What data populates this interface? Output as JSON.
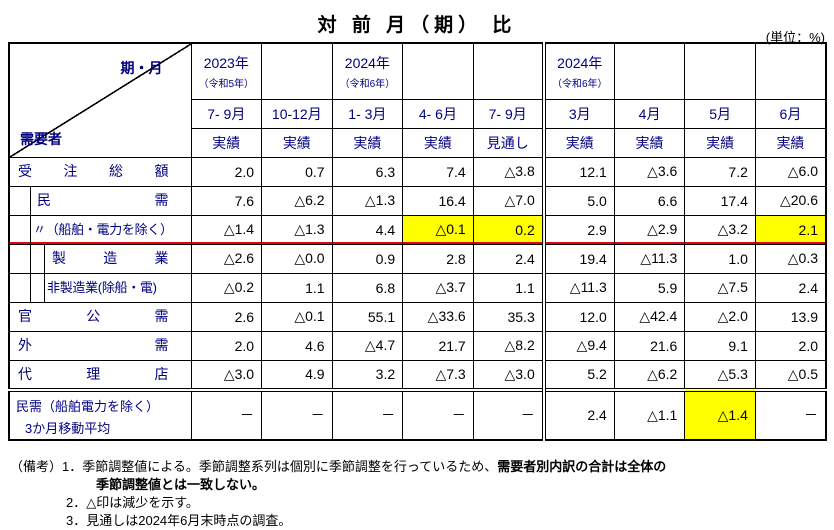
{
  "title": "対 前 月（期） 比",
  "unit_label": "(単位：%)",
  "table": {
    "corner_top": "期・月",
    "corner_bottom": "需要者",
    "monthly_section_start": 5,
    "columns": [
      {
        "year": "2023年",
        "era": "（令和5年）",
        "month": "7- 9月",
        "type": "実績"
      },
      {
        "year": "",
        "era": "",
        "month": "10-12月",
        "type": "実績"
      },
      {
        "year": "2024年",
        "era": "（令和6年）",
        "month": "1- 3月",
        "type": "実績"
      },
      {
        "year": "",
        "era": "",
        "month": "4- 6月",
        "type": "実績"
      },
      {
        "year": "",
        "era": "",
        "month": "7- 9月",
        "type": "見通し"
      },
      {
        "year": "2024年",
        "era": "（令和6年）",
        "month": "3月",
        "type": "実績"
      },
      {
        "year": "",
        "era": "",
        "month": "4月",
        "type": "実績"
      },
      {
        "year": "",
        "era": "",
        "month": "5月",
        "type": "実績"
      },
      {
        "year": "",
        "era": "",
        "month": "6月",
        "type": "実績"
      }
    ],
    "rows": [
      {
        "label": "受 注 総 額",
        "indent": 0,
        "justify": true,
        "values": [
          "2.0",
          "0.7",
          "6.3",
          "7.4",
          "△3.8",
          "12.1",
          "△3.6",
          "7.2",
          "△6.0"
        ]
      },
      {
        "label": "民 需",
        "indent": 1,
        "justify": true,
        "vlines": [
          20
        ],
        "values": [
          "7.6",
          "△6.2",
          "△1.3",
          "16.4",
          "△7.0",
          "5.0",
          "6.6",
          "17.4",
          "△20.6"
        ]
      },
      {
        "label": "〃（船舶・電力を除く）",
        "indent": 1,
        "justify": false,
        "small": true,
        "vlines": [
          20
        ],
        "red_bottom": true,
        "highlights": [
          3,
          4,
          8
        ],
        "values": [
          "△1.4",
          "△1.3",
          "4.4",
          "△0.1",
          "0.2",
          "2.9",
          "△2.9",
          "△3.2",
          "2.1"
        ]
      },
      {
        "label": "製 造 業",
        "indent": 2,
        "justify": true,
        "vlines": [
          20,
          34
        ],
        "values": [
          "△2.6",
          "△0.0",
          "0.9",
          "2.8",
          "2.4",
          "19.4",
          "△11.3",
          "1.0",
          "△0.3"
        ]
      },
      {
        "label": "非製造業(除船・電)",
        "indent": 2,
        "justify": false,
        "small": true,
        "vlines": [
          20,
          34
        ],
        "values": [
          "△0.2",
          "1.1",
          "6.8",
          "△3.7",
          "1.1",
          "△11.3",
          "5.9",
          "△7.5",
          "2.4"
        ]
      },
      {
        "label": "官 公 需",
        "indent": 0,
        "justify": true,
        "values": [
          "2.6",
          "△0.1",
          "55.1",
          "△33.6",
          "35.3",
          "12.0",
          "△42.4",
          "△2.0",
          "13.9"
        ]
      },
      {
        "label": "外 需",
        "indent": 0,
        "justify": true,
        "values": [
          "2.0",
          "4.6",
          "△4.7",
          "21.7",
          "△8.2",
          "△9.4",
          "21.6",
          "9.1",
          "2.0"
        ]
      },
      {
        "label": "代 理 店",
        "indent": 0,
        "justify": true,
        "values": [
          "△3.0",
          "4.9",
          "3.2",
          "△7.3",
          "△3.0",
          "5.2",
          "△6.2",
          "△5.3",
          "△0.5"
        ]
      }
    ],
    "footer": {
      "label_line1": "民需（船舶電力を除く）",
      "label_line2": "3か月移動平均",
      "highlights": [
        7
      ],
      "values": [
        "－",
        "－",
        "－",
        "－",
        "－",
        "2.4",
        "△1.1",
        "△1.4",
        "－"
      ]
    }
  },
  "notes": {
    "line1_prefix": "（備考）1．季節調整値による。季節調整系列は個別に季節調整を行っているため、",
    "line1_bold": "需要者別内訳の合計は全体の",
    "line2_bold": "季節調整値とは一致しない。",
    "line3": "2．△印は減少を示す。",
    "line4": "3．見通しは2024年6月末時点の調査。"
  }
}
